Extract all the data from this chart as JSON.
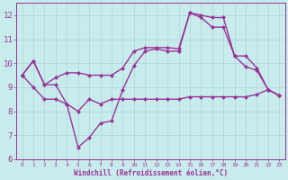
{
  "background_color": "#c8ecec",
  "line_color": "#993399",
  "grid_color": "#b0d8d8",
  "xlabel": "Windchill (Refroidissement éolien,°C)",
  "xlim": [
    -0.5,
    23.5
  ],
  "ylim": [
    6,
    12.5
  ],
  "yticks": [
    6,
    7,
    8,
    9,
    10,
    11,
    12
  ],
  "xticks": [
    0,
    1,
    2,
    3,
    4,
    5,
    6,
    7,
    8,
    9,
    10,
    11,
    12,
    13,
    14,
    15,
    16,
    17,
    18,
    19,
    20,
    21,
    22,
    23
  ],
  "series": [
    {
      "x": [
        0,
        1,
        2,
        3,
        4,
        5,
        6,
        7,
        8,
        9,
        10,
        11,
        12,
        13,
        14,
        15,
        16,
        17,
        18,
        19,
        20,
        21,
        22,
        23
      ],
      "y": [
        9.5,
        10.1,
        9.1,
        9.4,
        9.6,
        9.6,
        9.5,
        9.5,
        9.5,
        9.8,
        10.5,
        10.65,
        10.65,
        10.65,
        10.6,
        12.1,
        11.9,
        11.5,
        11.5,
        10.3,
        10.3,
        9.8,
        8.9,
        8.65
      ]
    },
    {
      "x": [
        0,
        1,
        2,
        3,
        4,
        5,
        6,
        7,
        8,
        9,
        10,
        11,
        12,
        13,
        14,
        15,
        16,
        17,
        18,
        19,
        20,
        21,
        22,
        23
      ],
      "y": [
        9.5,
        10.1,
        9.1,
        9.1,
        8.3,
        6.5,
        6.9,
        7.5,
        7.6,
        8.9,
        9.9,
        10.5,
        10.6,
        10.5,
        10.5,
        12.1,
        12.0,
        11.9,
        11.9,
        10.3,
        9.85,
        9.7,
        8.9,
        8.65
      ]
    },
    {
      "x": [
        0,
        1,
        2,
        3,
        4,
        5,
        6,
        7,
        8,
        9,
        10,
        11,
        12,
        13,
        14,
        15,
        16,
        17,
        18,
        19,
        20,
        21,
        22,
        23
      ],
      "y": [
        9.5,
        9.0,
        8.5,
        8.5,
        8.3,
        8.0,
        8.5,
        8.3,
        8.5,
        8.5,
        8.5,
        8.5,
        8.5,
        8.5,
        8.5,
        8.6,
        8.6,
        8.6,
        8.6,
        8.6,
        8.6,
        8.7,
        8.9,
        8.65
      ]
    }
  ]
}
